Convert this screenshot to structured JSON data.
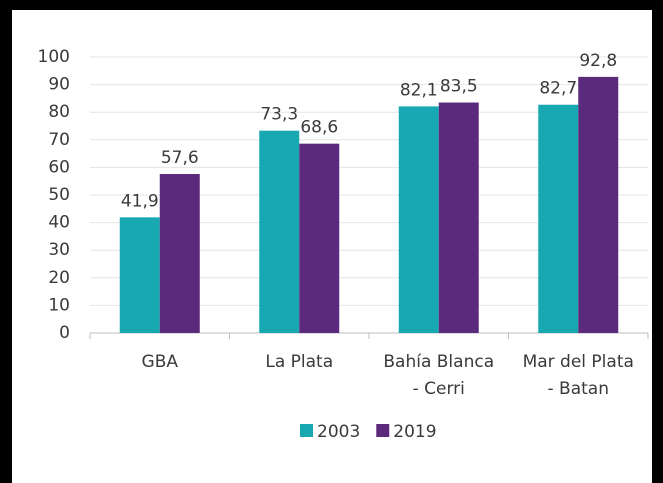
{
  "chart_data": {
    "type": "bar",
    "categories": [
      "GBA",
      "La Plata",
      "Bahía Blanca - Cerri",
      "Mar del Plata - Batan"
    ],
    "series": [
      {
        "name": "2003",
        "color": "#17a8b2",
        "values": [
          41.9,
          73.3,
          82.1,
          82.7
        ],
        "value_labels": [
          "41,9",
          "73,3",
          "82,1",
          "82,7"
        ]
      },
      {
        "name": "2019",
        "color": "#5b2a7c",
        "values": [
          57.6,
          68.6,
          83.5,
          92.8
        ],
        "value_labels": [
          "57,6",
          "68,6",
          "83,5",
          "92,8"
        ]
      }
    ],
    "ylim": [
      0,
      100
    ],
    "yticks": [
      0,
      10,
      20,
      30,
      40,
      50,
      60,
      70,
      80,
      90,
      100
    ],
    "grid": true,
    "legend": "bottom"
  }
}
